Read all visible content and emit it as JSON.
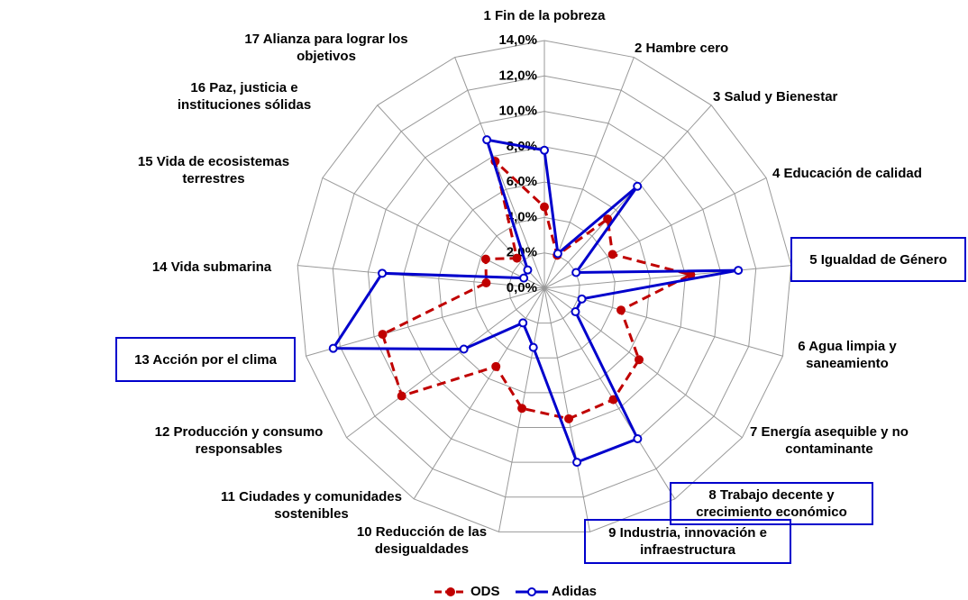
{
  "chart_data": {
    "type": "radar",
    "categories": [
      "1 Fin de la pobreza",
      "2 Hambre cero",
      "3 Salud y Bienestar",
      "4 Educación de calidad",
      "5 Igualdad de Género",
      "6 Agua limpia y saneamiento",
      "7 Energía asequible y no contaminante",
      "8 Trabajo decente y crecimiento económico",
      "9 Industria, innovación e infraestructura",
      "10 Reducción de las desigualdades",
      "11 Ciudades y comunidades sostenibles",
      "12 Producción y consumo responsables",
      "13 Acción por el clima",
      "14 Vida submarina",
      "15 Vida de ecosistemas terrestres",
      "16 Paz, justicia e instituciones sólidas",
      "17 Alianza para lograr los objetivos"
    ],
    "highlighted": [
      false,
      false,
      false,
      false,
      true,
      false,
      false,
      true,
      true,
      false,
      false,
      false,
      true,
      false,
      false,
      false,
      false
    ],
    "series": [
      {
        "name": "ODS",
        "color": "#c00000",
        "dashed": true,
        "values": [
          4.6,
          2.0,
          5.3,
          4.3,
          8.3,
          4.5,
          6.7,
          7.4,
          7.5,
          6.9,
          5.2,
          10.1,
          9.5,
          3.3,
          3.7,
          2.3,
          7.7
        ]
      },
      {
        "name": "Adidas",
        "color": "#0000cc",
        "dashed": false,
        "values": [
          7.8,
          2.1,
          7.8,
          2.0,
          11.0,
          2.2,
          2.2,
          10.0,
          10.0,
          3.4,
          2.3,
          5.7,
          12.4,
          9.2,
          1.3,
          1.4,
          9.0
        ]
      }
    ],
    "ylim": [
      0,
      14
    ],
    "yticks": [
      {
        "value": 0,
        "label": "0,0%"
      },
      {
        "value": 2,
        "label": "2,0%"
      },
      {
        "value": 4,
        "label": "4,0%"
      },
      {
        "value": 6,
        "label": "6,0%"
      },
      {
        "value": 8,
        "label": "8,0%"
      },
      {
        "value": 10,
        "label": "10,0%"
      },
      {
        "value": 12,
        "label": "12,0%"
      },
      {
        "value": 14,
        "label": "14,0%"
      }
    ],
    "grid": true,
    "legend": "bottom"
  }
}
